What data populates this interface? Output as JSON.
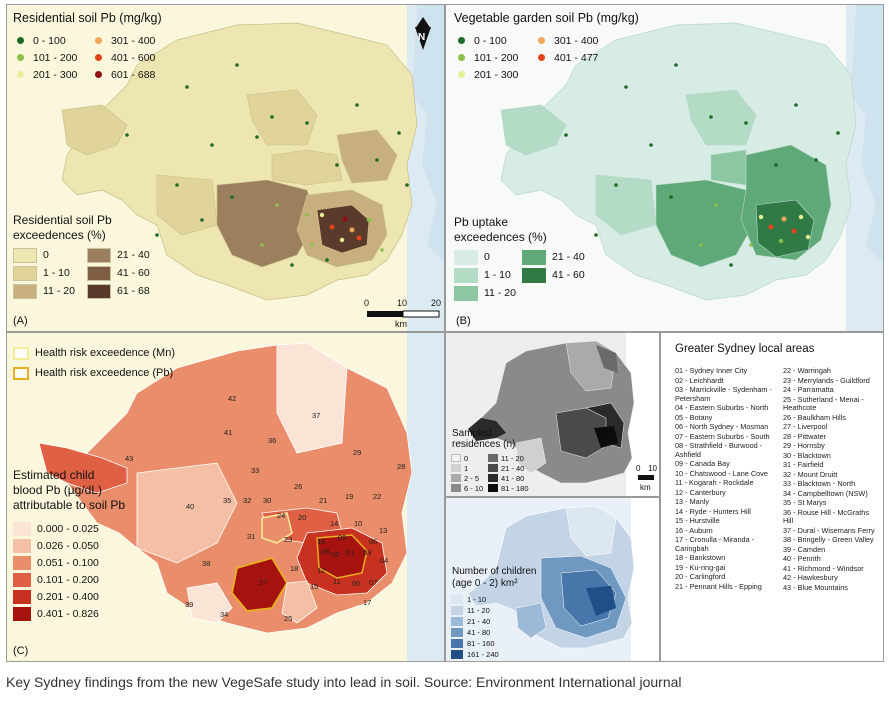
{
  "panelA": {
    "title": "Residential soil Pb (mg/kg)",
    "dot_legend": [
      {
        "label": "0 - 100",
        "color": "#1d6b27"
      },
      {
        "label": "101 - 200",
        "color": "#8cc04a"
      },
      {
        "label": "201 - 300",
        "color": "#e7ef9a"
      },
      {
        "label": "301 - 400",
        "color": "#f2a65a"
      },
      {
        "label": "401 - 600",
        "color": "#e0451b"
      },
      {
        "label": "601 - 688",
        "color": "#8e0f0f"
      }
    ],
    "class_title_1": "Residential soil Pb",
    "class_title_2": "exceedences (%)",
    "class_legend": [
      {
        "label": "0",
        "color": "#ede6b0"
      },
      {
        "label": "1 - 10",
        "color": "#e0d49b"
      },
      {
        "label": "11 - 20",
        "color": "#c7b07d"
      },
      {
        "label": "21 - 40",
        "color": "#9c7f5e"
      },
      {
        "label": "41 - 60",
        "color": "#7d5d44"
      },
      {
        "label": "61 - 68",
        "color": "#5a3a2a"
      }
    ],
    "scale_0": "0",
    "scale_10": "10",
    "scale_20": "20",
    "scale_unit": "km",
    "letter": "(A)",
    "north": "N"
  },
  "panelB": {
    "title": "Vegetable garden soil Pb (mg/kg)",
    "dot_legend": [
      {
        "label": "0 - 100",
        "color": "#1d6b27"
      },
      {
        "label": "101 - 200",
        "color": "#8cc04a"
      },
      {
        "label": "201 - 300",
        "color": "#e7ef9a"
      },
      {
        "label": "301 - 400",
        "color": "#f2a65a"
      },
      {
        "label": "401 - 477",
        "color": "#e0451b"
      }
    ],
    "class_title_1": "Pb uptake",
    "class_title_2": "exceedences (%)",
    "class_legend": [
      {
        "label": "0",
        "color": "#d7ece4"
      },
      {
        "label": "1 - 10",
        "color": "#b3dbc5"
      },
      {
        "label": "11 - 20",
        "color": "#8cc7a1"
      },
      {
        "label": "21 - 40",
        "color": "#5fa877"
      },
      {
        "label": "41 - 60",
        "color": "#2f7a45"
      }
    ],
    "letter": "(B)"
  },
  "panelC": {
    "box_legend": [
      {
        "label": "Health risk exceedence (Mn)",
        "color": "#f5ec9a"
      },
      {
        "label": "Health risk exceedence (Pb)",
        "color": "#e8b020"
      }
    ],
    "class_title_1": "Estimated child",
    "class_title_2": "blood Pb (µg/dL)",
    "class_title_3": "attributable to soil Pb",
    "class_legend": [
      {
        "label": "0.000 - 0.025",
        "color": "#fbe3d6"
      },
      {
        "label": "0.026 - 0.050",
        "color": "#f4bfa4"
      },
      {
        "label": "0.051 - 0.100",
        "color": "#ea8d6a"
      },
      {
        "label": "0.101 - 0.200",
        "color": "#df6044"
      },
      {
        "label": "0.201 - 0.400",
        "color": "#c8311f"
      },
      {
        "label": "0.401 - 0.826",
        "color": "#a6130f"
      }
    ],
    "letter": "(C)",
    "area_numbers": [
      "42",
      "37",
      "41",
      "36",
      "43",
      "33",
      "29",
      "28",
      "32",
      "30",
      "35",
      "26",
      "21",
      "19",
      "22",
      "40",
      "24",
      "20",
      "14",
      "10",
      "23",
      "31",
      "13",
      "09",
      "16",
      "06",
      "03",
      "18",
      "12",
      "08",
      "02",
      "04",
      "01",
      "38",
      "27",
      "15",
      "11",
      "05",
      "07",
      "17",
      "39",
      "34",
      "25"
    ]
  },
  "panelD": {
    "title_1": "Sampled",
    "title_2": "residences (n)",
    "legend": [
      {
        "label": "0",
        "color": "#f4f4f4"
      },
      {
        "label": "1",
        "color": "#d0d0d0"
      },
      {
        "label": "2 - 5",
        "color": "#aaaaaa"
      },
      {
        "label": "6 - 10",
        "color": "#8a8a8a"
      },
      {
        "label": "11 - 20",
        "color": "#6a6a6a"
      },
      {
        "label": "21 - 40",
        "color": "#4a4a4a"
      },
      {
        "label": "41 - 80",
        "color": "#2a2a2a"
      },
      {
        "label": "81 - 180",
        "color": "#0c0c0c"
      }
    ],
    "scale_0": "0",
    "scale_10": "10",
    "scale_unit": "km"
  },
  "panelE": {
    "title_1": "Number of children",
    "title_2": "(age 0 - 2) km²",
    "legend": [
      {
        "label": "1 - 10",
        "color": "#dde7f1"
      },
      {
        "label": "11 - 20",
        "color": "#c2d4e6"
      },
      {
        "label": "21 - 40",
        "color": "#9cbad7"
      },
      {
        "label": "41 - 80",
        "color": "#7099c2"
      },
      {
        "label": "81 - 160",
        "color": "#4777aa"
      },
      {
        "label": "161 - 240",
        "color": "#1f4f86"
      }
    ]
  },
  "panelF": {
    "title": "Greater Sydney local areas",
    "col1": [
      "01 - Sydney Inner City",
      "02 - Leichhardt",
      "03 - Marrickville - Sydenham - Petersham",
      "04 - Eastern Suburbs - North",
      "05 - Botany",
      "06 - North Sydney - Mosman",
      "07 - Eastern Suburbs - South",
      "08 - Strathfield - Burwood - Ashfield",
      "09 - Canada Bay",
      "10 - Chatswood - Lane Cove",
      "11 - Kogarah - Rockdale",
      "12 - Canterbury",
      "13 - Manly",
      "14 - Ryde - Hunters Hill",
      "15 - Hurstville",
      "16 - Auburn",
      "17 - Cronulla - Miranda - Caringbah",
      "18 - Bankstown",
      "19 - Ku-ring-gai",
      "20 - Carlingford",
      "21 - Pennant Hills - Epping"
    ],
    "col2": [
      "22 - Warringah",
      "23 - Merrylands - Guildford",
      "24 - Parramatta",
      "25 - Sutherland - Menai - Heathcote",
      "26 - Baulkham Hills",
      "27 - Liverpool",
      "28 - Pittwater",
      "29 - Hornsby",
      "30 - Blacktown",
      "31 - Fairfield",
      "32 - Mount Druitt",
      "33 - Blacktown - North",
      "34 - Campbelltown (NSW)",
      "35 - St Marys",
      "36 - Rouse Hill - McGraths Hill",
      "37 - Dural - Wisemans Ferry",
      "38 - Bringelly - Green Valley",
      "39 - Camden",
      "40 - Penrith",
      "41 - Richmond - Windsor",
      "42 - Hawkesbury",
      "43 - Blue Mountains"
    ]
  },
  "caption": "Key Sydney findings from the new VegeSafe study into lead in soil. Source: Environment International journal"
}
